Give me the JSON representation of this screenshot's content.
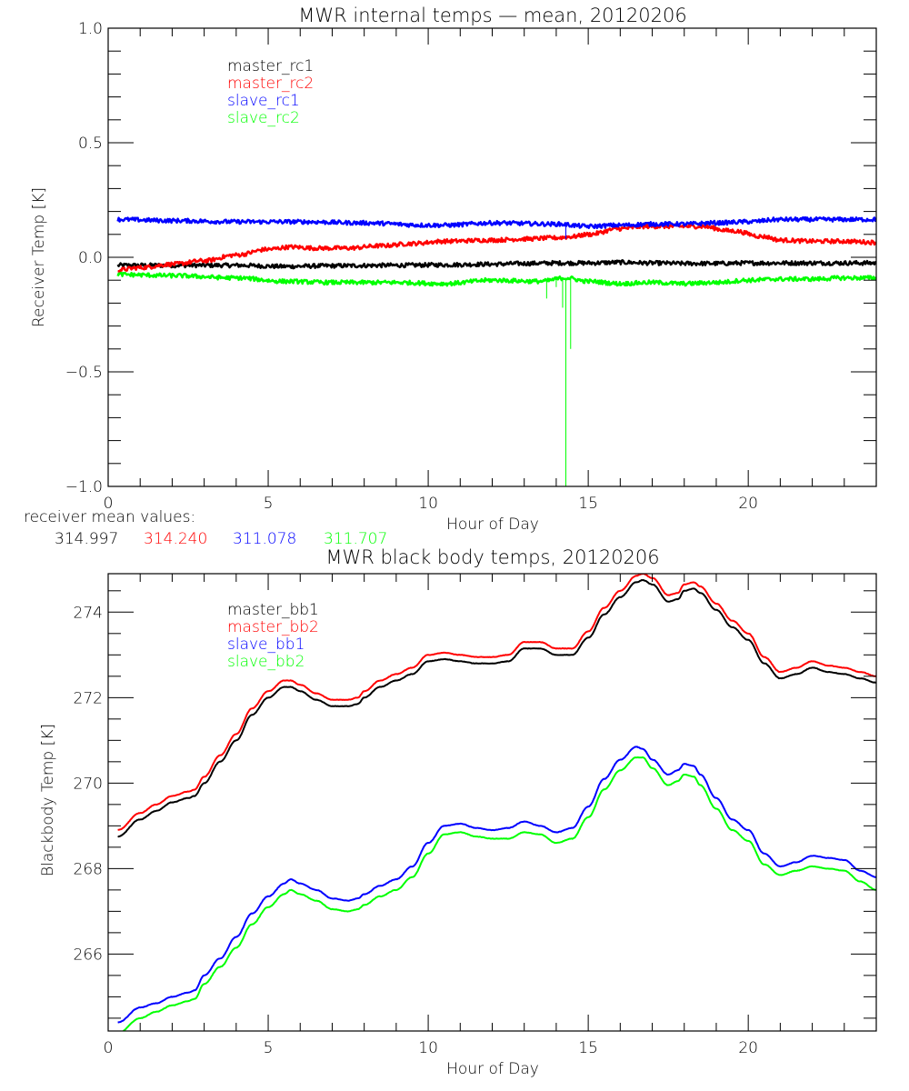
{
  "chart_data": [
    {
      "type": "line",
      "title": "MWR internal temps — mean, 20120206",
      "xlabel": "Hour of Day",
      "ylabel": "Receiver Temp [K]",
      "xlim": [
        0,
        24
      ],
      "ylim": [
        -1.0,
        1.0
      ],
      "x_ticks": [
        0,
        5,
        10,
        15,
        20
      ],
      "x_tick_labels": [
        "0",
        "5",
        "10",
        "15",
        "20"
      ],
      "y_ticks": [
        -1.0,
        -0.5,
        0.0,
        0.5,
        1.0
      ],
      "y_tick_labels": [
        "-1.0",
        "-0.5",
        "0.0",
        "0.5",
        "1.0"
      ],
      "grid": false,
      "legend_position": "top-left",
      "series": [
        {
          "name": "master_rc1",
          "color": "#000000",
          "x": [
            0.3,
            2,
            4,
            5.5,
            7,
            9,
            10.5,
            12,
            13,
            14,
            15,
            16,
            17,
            18,
            19,
            20,
            21,
            22,
            23,
            24
          ],
          "y": [
            -0.035,
            -0.035,
            -0.035,
            -0.04,
            -0.037,
            -0.035,
            -0.033,
            -0.03,
            -0.027,
            -0.025,
            -0.025,
            -0.022,
            -0.025,
            -0.027,
            -0.027,
            -0.025,
            -0.025,
            -0.025,
            -0.025,
            -0.025
          ]
        },
        {
          "name": "master_rc2",
          "color": "#ff0000",
          "x": [
            0.3,
            1,
            2,
            3,
            4,
            5,
            5.7,
            6.5,
            7.5,
            8.5,
            9.5,
            10.5,
            12,
            13,
            14,
            14.5,
            15,
            16,
            16.8,
            17.5,
            18.5,
            19.5,
            20.5,
            21,
            22,
            23,
            24
          ],
          "y": [
            -0.055,
            -0.045,
            -0.03,
            -0.015,
            0.01,
            0.035,
            0.045,
            0.04,
            0.04,
            0.05,
            0.06,
            0.07,
            0.075,
            0.08,
            0.085,
            0.09,
            0.1,
            0.125,
            0.135,
            0.135,
            0.135,
            0.115,
            0.09,
            0.075,
            0.07,
            0.07,
            0.065
          ]
        },
        {
          "name": "slave_rc1",
          "color": "#0000ff",
          "x": [
            0.3,
            2,
            4,
            6,
            8,
            10,
            10.5,
            12,
            14,
            15,
            16,
            17,
            18,
            19,
            20,
            21,
            22,
            23,
            24
          ],
          "y": [
            0.165,
            0.16,
            0.155,
            0.155,
            0.15,
            0.14,
            0.14,
            0.15,
            0.145,
            0.135,
            0.14,
            0.145,
            0.145,
            0.15,
            0.155,
            0.165,
            0.165,
            0.165,
            0.165
          ]
        },
        {
          "name": "slave_rc2",
          "color": "#00ff00",
          "x": [
            0.3,
            2,
            4,
            5.5,
            7,
            9,
            10.5,
            12,
            13.5,
            14.3,
            15,
            16,
            17,
            18,
            19,
            20,
            21,
            22,
            23,
            24
          ],
          "y": [
            -0.075,
            -0.08,
            -0.09,
            -0.105,
            -0.11,
            -0.11,
            -0.115,
            -0.1,
            -0.105,
            -0.09,
            -0.105,
            -0.115,
            -0.11,
            -0.115,
            -0.11,
            -0.1,
            -0.095,
            -0.095,
            -0.09,
            -0.09
          ]
        }
      ],
      "spikes": [
        {
          "series": "slave_rc2",
          "x": 13.7,
          "y_to": -0.18
        },
        {
          "series": "slave_rc2",
          "x": 14.0,
          "y_to": -0.13
        },
        {
          "series": "slave_rc2",
          "x": 14.2,
          "y_to": -0.22
        },
        {
          "series": "slave_rc2",
          "x": 14.3,
          "y_to": -1.0
        },
        {
          "series": "slave_rc2",
          "x": 14.45,
          "y_to": -0.4
        },
        {
          "series": "slave_rc1",
          "x": 14.3,
          "y_to": 0.08
        }
      ],
      "annotation": {
        "label": "receiver mean values:",
        "values": [
          {
            "text": "314.997",
            "color": "#000000"
          },
          {
            "text": "314.240",
            "color": "#ff0000"
          },
          {
            "text": "311.078",
            "color": "#0000ff"
          },
          {
            "text": "311.707",
            "color": "#00ff00"
          }
        ]
      }
    },
    {
      "type": "line",
      "title": "MWR black body temps, 20120206",
      "xlabel": "Hour of Day",
      "ylabel": "Blackbody Temp [K]",
      "xlim": [
        0,
        24
      ],
      "ylim": [
        264.2,
        274.9
      ],
      "x_ticks": [
        0,
        5,
        10,
        15,
        20
      ],
      "x_tick_labels": [
        "0",
        "5",
        "10",
        "15",
        "20"
      ],
      "y_ticks": [
        266,
        268,
        270,
        272,
        274
      ],
      "y_tick_labels": [
        "266",
        "268",
        "270",
        "272",
        "274"
      ],
      "grid": false,
      "legend_position": "top-left",
      "series": [
        {
          "name": "master_bb1",
          "color": "#000000",
          "x": [
            0.3,
            1,
            1.5,
            2,
            2.5,
            2.7,
            3,
            3.5,
            4,
            4.5,
            5,
            5.5,
            5.7,
            6,
            6.5,
            7,
            7.5,
            7.8,
            8,
            8.5,
            9,
            9.5,
            10,
            10.5,
            11,
            11.5,
            12,
            12.5,
            13,
            13.5,
            14,
            14.5,
            15,
            15.5,
            16,
            16.5,
            16.7,
            17,
            17.5,
            17.8,
            18,
            18.3,
            18.5,
            19,
            19.5,
            20,
            20.5,
            21,
            21.5,
            22,
            22.5,
            23,
            23.5,
            24
          ],
          "y": [
            268.75,
            269.15,
            269.35,
            269.55,
            269.65,
            269.7,
            270.0,
            270.5,
            271.0,
            271.6,
            272.0,
            272.25,
            272.25,
            272.15,
            271.95,
            271.8,
            271.8,
            271.85,
            272.0,
            272.25,
            272.4,
            272.55,
            272.85,
            272.9,
            272.85,
            272.8,
            272.8,
            272.85,
            273.15,
            273.15,
            273.0,
            273.0,
            273.4,
            273.95,
            274.35,
            274.7,
            274.75,
            274.65,
            274.25,
            274.3,
            274.5,
            274.55,
            274.45,
            274.05,
            273.65,
            273.35,
            272.8,
            272.45,
            272.55,
            272.7,
            272.6,
            272.55,
            272.45,
            272.35
          ]
        },
        {
          "name": "master_bb2",
          "color": "#ff0000",
          "x": [
            0.3,
            1,
            1.5,
            2,
            2.5,
            2.7,
            3,
            3.5,
            4,
            4.5,
            5,
            5.5,
            5.7,
            6,
            6.5,
            7,
            7.5,
            7.8,
            8,
            8.5,
            9,
            9.5,
            10,
            10.5,
            11,
            11.5,
            12,
            12.5,
            13,
            13.5,
            14,
            14.5,
            15,
            15.5,
            16,
            16.5,
            16.7,
            17,
            17.5,
            17.8,
            18,
            18.3,
            18.5,
            19,
            19.5,
            20,
            20.5,
            21,
            21.5,
            22,
            22.5,
            23,
            23.5,
            24
          ],
          "y": [
            268.9,
            269.3,
            269.5,
            269.7,
            269.8,
            269.85,
            270.15,
            270.65,
            271.15,
            271.75,
            272.15,
            272.4,
            272.4,
            272.3,
            272.1,
            271.95,
            271.95,
            272.0,
            272.15,
            272.4,
            272.55,
            272.7,
            273.0,
            273.05,
            273.0,
            272.95,
            272.95,
            273.0,
            273.3,
            273.3,
            273.15,
            273.15,
            273.55,
            274.1,
            274.5,
            274.85,
            274.9,
            274.8,
            274.4,
            274.45,
            274.65,
            274.7,
            274.6,
            274.2,
            273.8,
            273.5,
            272.95,
            272.6,
            272.7,
            272.85,
            272.75,
            272.7,
            272.6,
            272.5
          ]
        },
        {
          "name": "slave_bb1",
          "color": "#0000ff",
          "x": [
            0.3,
            1,
            1.5,
            2,
            2.5,
            2.7,
            3,
            3.5,
            4,
            4.5,
            5,
            5.5,
            5.7,
            6,
            6.5,
            7,
            7.5,
            7.8,
            8,
            8.5,
            9,
            9.5,
            10,
            10.5,
            11,
            11.5,
            12,
            12.5,
            13,
            13.5,
            14,
            14.5,
            15,
            15.5,
            16,
            16.5,
            16.7,
            17,
            17.5,
            17.8,
            18,
            18.3,
            18.5,
            19,
            19.5,
            20,
            20.5,
            21,
            21.5,
            22,
            22.5,
            23,
            23.5,
            24
          ],
          "y": [
            264.4,
            264.75,
            264.85,
            265.0,
            265.1,
            265.15,
            265.5,
            265.9,
            266.4,
            266.95,
            267.35,
            267.65,
            267.75,
            267.65,
            267.5,
            267.3,
            267.25,
            267.3,
            267.4,
            267.6,
            267.75,
            268.05,
            268.6,
            269.0,
            269.05,
            268.95,
            268.9,
            268.95,
            269.1,
            269.0,
            268.85,
            268.95,
            269.45,
            270.1,
            270.55,
            270.85,
            270.8,
            270.55,
            270.2,
            270.3,
            270.45,
            270.4,
            270.2,
            269.65,
            269.15,
            268.9,
            268.35,
            268.05,
            268.15,
            268.3,
            268.25,
            268.2,
            267.95,
            267.8
          ]
        },
        {
          "name": "slave_bb2",
          "color": "#00ff00",
          "x": [
            0.3,
            1,
            1.5,
            2,
            2.5,
            2.7,
            3,
            3.5,
            4,
            4.5,
            5,
            5.5,
            5.7,
            6,
            6.5,
            7,
            7.5,
            7.8,
            8,
            8.5,
            9,
            9.5,
            10,
            10.5,
            11,
            11.5,
            12,
            12.5,
            13,
            13.5,
            14,
            14.5,
            15,
            15.5,
            16,
            16.5,
            16.7,
            17,
            17.5,
            17.8,
            18,
            18.3,
            18.5,
            19,
            19.5,
            20,
            20.5,
            21,
            21.5,
            22,
            22.5,
            23,
            23.5,
            24
          ],
          "y": [
            264.15,
            264.5,
            264.65,
            264.8,
            264.9,
            264.95,
            265.3,
            265.7,
            266.15,
            266.7,
            267.1,
            267.4,
            267.5,
            267.4,
            267.25,
            267.05,
            267.0,
            267.05,
            267.15,
            267.35,
            267.5,
            267.8,
            268.35,
            268.8,
            268.85,
            268.75,
            268.7,
            268.7,
            268.85,
            268.8,
            268.6,
            268.7,
            269.2,
            269.85,
            270.3,
            270.6,
            270.6,
            270.35,
            269.95,
            270.05,
            270.2,
            270.15,
            269.95,
            269.4,
            268.9,
            268.65,
            268.1,
            267.85,
            267.95,
            268.05,
            268.0,
            267.95,
            267.7,
            267.5
          ]
        }
      ]
    }
  ]
}
